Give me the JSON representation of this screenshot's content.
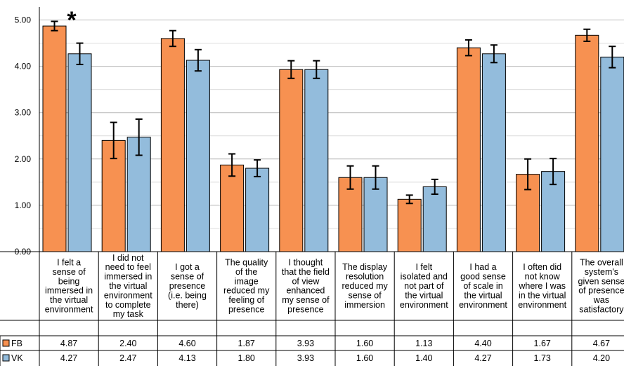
{
  "chart_data": {
    "type": "bar",
    "categories": [
      [
        "I felt a",
        "sense of",
        "being",
        "immersed in",
        "the virtual",
        "environment"
      ],
      [
        "I did not",
        "need to feel",
        "immersed in",
        "the virtual",
        "environment",
        "to complete",
        "my task"
      ],
      [
        "I got a",
        "sense of",
        "presence",
        "(i.e. being",
        "there)"
      ],
      [
        "The quality",
        "of the",
        "image",
        "reduced my",
        "feeling of",
        "presence"
      ],
      [
        "I thought",
        "that the field",
        "of view",
        "enhanced",
        "my sense of",
        "presence"
      ],
      [
        "The display",
        "resolution",
        "reduced my",
        "sense of",
        "immersion"
      ],
      [
        "I felt",
        "isolated and",
        "not part of",
        "the virtual",
        "environment"
      ],
      [
        "I had a",
        "good sense",
        "of scale in",
        "the virtual",
        "environment"
      ],
      [
        "I often did",
        "not know",
        "where I was",
        "in the virtual",
        "environment"
      ],
      [
        "The overall",
        "system's",
        "given sense",
        "of presence",
        "was",
        "satisfactory"
      ]
    ],
    "series": [
      {
        "name": "FB",
        "color": "#f79151",
        "values": [
          4.87,
          2.4,
          4.6,
          1.87,
          3.93,
          1.6,
          1.13,
          4.4,
          1.67,
          4.67
        ],
        "error": [
          0.1,
          0.39,
          0.17,
          0.24,
          0.19,
          0.25,
          0.09,
          0.17,
          0.33,
          0.13
        ]
      },
      {
        "name": "VK",
        "color": "#93bcdc",
        "values": [
          4.27,
          2.47,
          4.13,
          1.8,
          3.93,
          1.6,
          1.4,
          4.27,
          1.73,
          4.2
        ],
        "error": [
          0.23,
          0.39,
          0.23,
          0.18,
          0.19,
          0.25,
          0.16,
          0.19,
          0.28,
          0.23
        ]
      }
    ],
    "table_values": {
      "FB": [
        "4.87",
        "2.40",
        "4.60",
        "1.87",
        "3.93",
        "1.60",
        "1.13",
        "4.40",
        "1.67",
        "4.67"
      ],
      "VK": [
        "4.27",
        "2.47",
        "4.13",
        "1.80",
        "3.93",
        "1.60",
        "1.40",
        "4.27",
        "1.73",
        "4.20"
      ]
    },
    "y_ticks": [
      "0.00",
      "1.00",
      "2.00",
      "3.00",
      "4.00",
      "5.00"
    ],
    "ylim": [
      0,
      5
    ],
    "grid": true,
    "legend": "data-table",
    "significance": {
      "category_index": 0,
      "marker": "*"
    }
  }
}
